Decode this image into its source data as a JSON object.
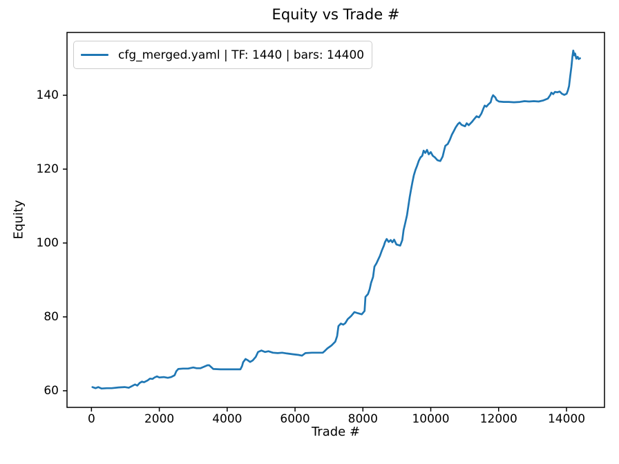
{
  "figure": {
    "background": "#ffffff",
    "text_color": "#000000",
    "spine_color": "#000000",
    "legend_border_color": "#cccccc"
  },
  "chart_data": {
    "type": "line",
    "title": "Equity vs Trade #",
    "xlabel": "Trade #",
    "ylabel": "Equity",
    "grid": false,
    "legend_position": "upper left",
    "legend": [
      {
        "label": "cfg_merged.yaml | TF: 1440 | bars: 14400",
        "color": "#1f77b4"
      }
    ],
    "xlim": [
      -720,
      15120
    ],
    "ylim": [
      55.5,
      157
    ],
    "x_ticks": [
      0,
      2000,
      4000,
      6000,
      8000,
      10000,
      12000,
      14000
    ],
    "y_ticks": [
      60,
      80,
      100,
      120,
      140
    ],
    "series": [
      {
        "name": "cfg_merged.yaml | TF: 1440 | bars: 14400",
        "color": "#1f77b4",
        "line_width": 2.7,
        "points": [
          [
            30,
            61.0
          ],
          [
            120,
            60.7
          ],
          [
            200,
            61.0
          ],
          [
            300,
            60.6
          ],
          [
            450,
            60.7
          ],
          [
            600,
            60.7
          ],
          [
            800,
            60.9
          ],
          [
            980,
            61.0
          ],
          [
            1100,
            60.8
          ],
          [
            1285,
            61.7
          ],
          [
            1350,
            61.4
          ],
          [
            1420,
            62.1
          ],
          [
            1490,
            62.5
          ],
          [
            1550,
            62.3
          ],
          [
            1655,
            62.8
          ],
          [
            1725,
            63.3
          ],
          [
            1800,
            63.2
          ],
          [
            1860,
            63.6
          ],
          [
            1930,
            63.9
          ],
          [
            2000,
            63.6
          ],
          [
            2130,
            63.7
          ],
          [
            2250,
            63.5
          ],
          [
            2350,
            63.7
          ],
          [
            2450,
            64.2
          ],
          [
            2500,
            65.3
          ],
          [
            2560,
            65.9
          ],
          [
            2700,
            66.0
          ],
          [
            2850,
            66.0
          ],
          [
            3000,
            66.3
          ],
          [
            3100,
            66.1
          ],
          [
            3215,
            66.1
          ],
          [
            3420,
            66.9
          ],
          [
            3470,
            66.9
          ],
          [
            3590,
            65.9
          ],
          [
            3800,
            65.8
          ],
          [
            4000,
            65.8
          ],
          [
            4200,
            65.8
          ],
          [
            4390,
            65.8
          ],
          [
            4440,
            66.7
          ],
          [
            4470,
            67.7
          ],
          [
            4540,
            68.6
          ],
          [
            4600,
            68.3
          ],
          [
            4675,
            67.8
          ],
          [
            4750,
            68.2
          ],
          [
            4845,
            69.2
          ],
          [
            4910,
            70.5
          ],
          [
            5010,
            70.9
          ],
          [
            5115,
            70.5
          ],
          [
            5215,
            70.7
          ],
          [
            5350,
            70.3
          ],
          [
            5490,
            70.2
          ],
          [
            5620,
            70.3
          ],
          [
            5760,
            70.1
          ],
          [
            5930,
            69.9
          ],
          [
            6100,
            69.7
          ],
          [
            6205,
            69.5
          ],
          [
            6305,
            70.2
          ],
          [
            6500,
            70.3
          ],
          [
            6820,
            70.3
          ],
          [
            6880,
            70.8
          ],
          [
            6945,
            71.4
          ],
          [
            7080,
            72.3
          ],
          [
            7185,
            73.3
          ],
          [
            7240,
            74.8
          ],
          [
            7280,
            77.5
          ],
          [
            7350,
            78.2
          ],
          [
            7420,
            77.9
          ],
          [
            7480,
            78.3
          ],
          [
            7555,
            79.4
          ],
          [
            7650,
            80.2
          ],
          [
            7750,
            81.3
          ],
          [
            7850,
            81.0
          ],
          [
            7965,
            80.7
          ],
          [
            8050,
            81.6
          ],
          [
            8075,
            85.4
          ],
          [
            8150,
            86.2
          ],
          [
            8200,
            87.5
          ],
          [
            8240,
            89.2
          ],
          [
            8300,
            90.8
          ],
          [
            8340,
            93.6
          ],
          [
            8400,
            94.5
          ],
          [
            8450,
            95.5
          ],
          [
            8500,
            96.5
          ],
          [
            8560,
            98.0
          ],
          [
            8620,
            99.3
          ],
          [
            8650,
            100.2
          ],
          [
            8700,
            101.1
          ],
          [
            8760,
            100.3
          ],
          [
            8820,
            100.8
          ],
          [
            8870,
            100.2
          ],
          [
            8920,
            100.9
          ],
          [
            8990,
            99.6
          ],
          [
            9100,
            99.3
          ],
          [
            9160,
            100.8
          ],
          [
            9200,
            103.5
          ],
          [
            9250,
            105.5
          ],
          [
            9300,
            107.5
          ],
          [
            9340,
            110.0
          ],
          [
            9380,
            112.5
          ],
          [
            9420,
            114.5
          ],
          [
            9460,
            116.5
          ],
          [
            9500,
            118.3
          ],
          [
            9550,
            119.8
          ],
          [
            9600,
            121.0
          ],
          [
            9650,
            122.3
          ],
          [
            9700,
            123.2
          ],
          [
            9750,
            123.6
          ],
          [
            9790,
            125.0
          ],
          [
            9840,
            124.4
          ],
          [
            9890,
            125.2
          ],
          [
            9940,
            124.0
          ],
          [
            10000,
            124.6
          ],
          [
            10060,
            123.6
          ],
          [
            10120,
            123.2
          ],
          [
            10200,
            122.4
          ],
          [
            10280,
            122.2
          ],
          [
            10350,
            123.4
          ],
          [
            10400,
            125.3
          ],
          [
            10430,
            126.3
          ],
          [
            10500,
            126.8
          ],
          [
            10565,
            128.0
          ],
          [
            10620,
            129.3
          ],
          [
            10680,
            130.3
          ],
          [
            10735,
            131.3
          ],
          [
            10800,
            132.2
          ],
          [
            10850,
            132.6
          ],
          [
            10905,
            132.0
          ],
          [
            11010,
            131.6
          ],
          [
            11060,
            132.4
          ],
          [
            11120,
            131.9
          ],
          [
            11215,
            132.8
          ],
          [
            11285,
            133.6
          ],
          [
            11350,
            134.3
          ],
          [
            11420,
            134.0
          ],
          [
            11490,
            135.0
          ],
          [
            11555,
            136.5
          ],
          [
            11590,
            137.2
          ],
          [
            11640,
            136.9
          ],
          [
            11695,
            137.5
          ],
          [
            11765,
            138.1
          ],
          [
            11800,
            139.3
          ],
          [
            11835,
            140.0
          ],
          [
            11905,
            139.4
          ],
          [
            11940,
            138.7
          ],
          [
            12010,
            138.3
          ],
          [
            12150,
            138.2
          ],
          [
            12300,
            138.2
          ],
          [
            12450,
            138.1
          ],
          [
            12625,
            138.2
          ],
          [
            12760,
            138.4
          ],
          [
            12900,
            138.3
          ],
          [
            13040,
            138.4
          ],
          [
            13180,
            138.3
          ],
          [
            13320,
            138.6
          ],
          [
            13450,
            139.1
          ],
          [
            13520,
            140.0
          ],
          [
            13555,
            140.7
          ],
          [
            13610,
            140.3
          ],
          [
            13660,
            140.9
          ],
          [
            13730,
            140.8
          ],
          [
            13800,
            141.0
          ],
          [
            13865,
            140.4
          ],
          [
            13935,
            140.1
          ],
          [
            14005,
            140.4
          ],
          [
            14040,
            141.3
          ],
          [
            14075,
            142.5
          ],
          [
            14110,
            145.2
          ],
          [
            14145,
            147.7
          ],
          [
            14175,
            150.5
          ],
          [
            14200,
            152.1
          ],
          [
            14230,
            150.8
          ],
          [
            14255,
            151.3
          ],
          [
            14290,
            149.9
          ],
          [
            14330,
            150.4
          ],
          [
            14360,
            149.8
          ],
          [
            14400,
            150.0
          ]
        ]
      }
    ]
  }
}
